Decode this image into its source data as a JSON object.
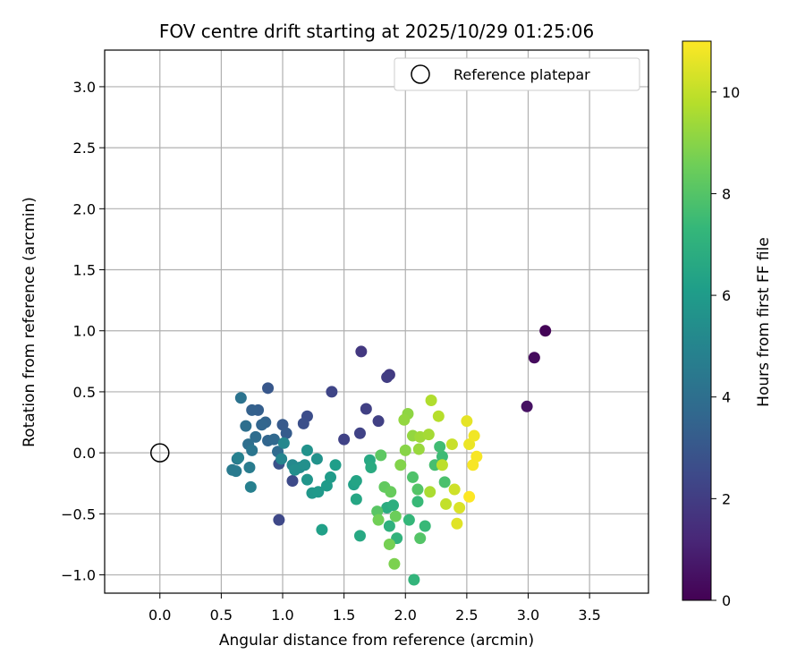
{
  "chart_data": {
    "type": "scatter",
    "title": "FOV centre drift starting at 2025/10/29 01:25:06",
    "xlabel": "Angular distance from reference (arcmin)",
    "ylabel": "Rotation from reference (arcmin)",
    "xlim": [
      -0.45,
      3.98
    ],
    "ylim": [
      -1.15,
      3.3
    ],
    "xticks": [
      0.0,
      0.5,
      1.0,
      1.5,
      2.0,
      2.5,
      3.0,
      3.5
    ],
    "xtick_labels": [
      "0.0",
      "0.5",
      "1.0",
      "1.5",
      "2.0",
      "2.5",
      "3.0",
      "3.5"
    ],
    "yticks": [
      -1.0,
      -0.5,
      0.0,
      0.5,
      1.0,
      1.5,
      2.0,
      2.5,
      3.0
    ],
    "ytick_labels": [
      "−1.0",
      "−0.5",
      "0.0",
      "0.5",
      "1.0",
      "1.5",
      "2.0",
      "2.5",
      "3.0"
    ],
    "grid": true,
    "legend": {
      "position": "top-right",
      "entries": [
        "Reference platepar"
      ]
    },
    "reference_point": {
      "x": 0.0,
      "y": 0.0,
      "label": "Reference platepar"
    },
    "colorbar": {
      "label": "Hours from first FF file",
      "range": [
        0,
        11
      ],
      "ticks": [
        0,
        2,
        4,
        6,
        8,
        10
      ],
      "tick_labels": [
        "0",
        "2",
        "4",
        "6",
        "8",
        "10"
      ],
      "colormap": [
        "#440154",
        "#482878",
        "#3e4989",
        "#31688e",
        "#26828e",
        "#1f9e89",
        "#35b779",
        "#6ece58",
        "#b5de2b",
        "#fde725"
      ]
    },
    "points": [
      {
        "x": 3.14,
        "y": 1.0,
        "t": 0.1
      },
      {
        "x": 3.05,
        "y": 0.78,
        "t": 0.3
      },
      {
        "x": 2.99,
        "y": 0.38,
        "t": 0.5
      },
      {
        "x": 1.64,
        "y": 0.83,
        "t": 1.8
      },
      {
        "x": 1.87,
        "y": 0.64,
        "t": 1.9
      },
      {
        "x": 1.85,
        "y": 0.62,
        "t": 2.0
      },
      {
        "x": 1.68,
        "y": 0.36,
        "t": 2.1
      },
      {
        "x": 1.78,
        "y": 0.26,
        "t": 2.1
      },
      {
        "x": 1.63,
        "y": 0.16,
        "t": 2.2
      },
      {
        "x": 1.5,
        "y": 0.11,
        "t": 2.2
      },
      {
        "x": 1.4,
        "y": 0.5,
        "t": 2.3
      },
      {
        "x": 0.97,
        "y": -0.55,
        "t": 2.4
      },
      {
        "x": 1.08,
        "y": -0.23,
        "t": 2.5
      },
      {
        "x": 1.2,
        "y": 0.3,
        "t": 2.6
      },
      {
        "x": 1.17,
        "y": 0.24,
        "t": 2.7
      },
      {
        "x": 0.97,
        "y": -0.09,
        "t": 2.8
      },
      {
        "x": 0.88,
        "y": 0.53,
        "t": 3.0
      },
      {
        "x": 1.0,
        "y": 0.23,
        "t": 3.1
      },
      {
        "x": 1.03,
        "y": 0.16,
        "t": 3.2
      },
      {
        "x": 0.8,
        "y": 0.35,
        "t": 3.3
      },
      {
        "x": 0.75,
        "y": 0.35,
        "t": 3.4
      },
      {
        "x": 0.86,
        "y": 0.25,
        "t": 3.5
      },
      {
        "x": 0.83,
        "y": 0.23,
        "t": 3.6
      },
      {
        "x": 0.88,
        "y": 0.1,
        "t": 3.6
      },
      {
        "x": 0.93,
        "y": 0.11,
        "t": 3.7
      },
      {
        "x": 0.96,
        "y": 0.01,
        "t": 3.8
      },
      {
        "x": 0.78,
        "y": 0.13,
        "t": 3.9
      },
      {
        "x": 0.72,
        "y": 0.07,
        "t": 4.0
      },
      {
        "x": 0.7,
        "y": 0.22,
        "t": 4.0
      },
      {
        "x": 0.66,
        "y": 0.45,
        "t": 4.2
      },
      {
        "x": 0.75,
        "y": 0.02,
        "t": 4.3
      },
      {
        "x": 0.63,
        "y": -0.05,
        "t": 4.4
      },
      {
        "x": 0.59,
        "y": -0.14,
        "t": 4.5
      },
      {
        "x": 0.62,
        "y": -0.15,
        "t": 4.5
      },
      {
        "x": 0.73,
        "y": -0.12,
        "t": 4.6
      },
      {
        "x": 0.74,
        "y": -0.28,
        "t": 4.8
      },
      {
        "x": 0.64,
        "y": -0.04,
        "t": 4.8
      },
      {
        "x": 0.99,
        "y": -0.05,
        "t": 5.0
      },
      {
        "x": 1.01,
        "y": 0.08,
        "t": 5.1
      },
      {
        "x": 1.08,
        "y": -0.1,
        "t": 5.2
      },
      {
        "x": 1.14,
        "y": -0.12,
        "t": 5.3
      },
      {
        "x": 1.1,
        "y": -0.14,
        "t": 5.4
      },
      {
        "x": 1.18,
        "y": -0.1,
        "t": 5.5
      },
      {
        "x": 1.2,
        "y": 0.02,
        "t": 5.6
      },
      {
        "x": 1.28,
        "y": -0.05,
        "t": 5.6
      },
      {
        "x": 1.2,
        "y": -0.22,
        "t": 5.7
      },
      {
        "x": 1.24,
        "y": -0.33,
        "t": 5.8
      },
      {
        "x": 1.29,
        "y": -0.32,
        "t": 5.9
      },
      {
        "x": 1.36,
        "y": -0.27,
        "t": 6.0
      },
      {
        "x": 1.39,
        "y": -0.2,
        "t": 6.0
      },
      {
        "x": 1.43,
        "y": -0.1,
        "t": 6.1
      },
      {
        "x": 1.32,
        "y": -0.63,
        "t": 6.2
      },
      {
        "x": 1.58,
        "y": -0.26,
        "t": 6.3
      },
      {
        "x": 1.6,
        "y": -0.23,
        "t": 6.4
      },
      {
        "x": 1.6,
        "y": -0.38,
        "t": 6.5
      },
      {
        "x": 1.63,
        "y": -0.68,
        "t": 6.6
      },
      {
        "x": 1.71,
        "y": -0.06,
        "t": 6.6
      },
      {
        "x": 1.72,
        "y": -0.12,
        "t": 6.7
      },
      {
        "x": 1.85,
        "y": -0.45,
        "t": 6.8
      },
      {
        "x": 1.9,
        "y": -0.43,
        "t": 6.9
      },
      {
        "x": 1.87,
        "y": -0.6,
        "t": 7.0
      },
      {
        "x": 1.93,
        "y": -0.7,
        "t": 7.1
      },
      {
        "x": 2.07,
        "y": -1.04,
        "t": 7.2
      },
      {
        "x": 2.03,
        "y": -0.55,
        "t": 7.3
      },
      {
        "x": 2.1,
        "y": -0.4,
        "t": 7.4
      },
      {
        "x": 2.16,
        "y": -0.6,
        "t": 7.4
      },
      {
        "x": 2.3,
        "y": -0.03,
        "t": 7.5
      },
      {
        "x": 2.28,
        "y": 0.05,
        "t": 7.6
      },
      {
        "x": 2.24,
        "y": -0.1,
        "t": 7.7
      },
      {
        "x": 2.32,
        "y": -0.24,
        "t": 7.8
      },
      {
        "x": 2.06,
        "y": -0.2,
        "t": 7.9
      },
      {
        "x": 2.1,
        "y": -0.3,
        "t": 8.0
      },
      {
        "x": 2.12,
        "y": -0.7,
        "t": 8.0
      },
      {
        "x": 1.77,
        "y": -0.48,
        "t": 8.1
      },
      {
        "x": 1.8,
        "y": -0.02,
        "t": 8.2
      },
      {
        "x": 1.83,
        "y": -0.28,
        "t": 8.3
      },
      {
        "x": 1.88,
        "y": -0.32,
        "t": 8.4
      },
      {
        "x": 1.92,
        "y": -0.52,
        "t": 8.5
      },
      {
        "x": 1.78,
        "y": -0.55,
        "t": 8.6
      },
      {
        "x": 1.87,
        "y": -0.75,
        "t": 8.7
      },
      {
        "x": 1.91,
        "y": -0.91,
        "t": 8.8
      },
      {
        "x": 1.96,
        "y": -0.1,
        "t": 8.9
      },
      {
        "x": 2.0,
        "y": 0.02,
        "t": 9.0
      },
      {
        "x": 2.02,
        "y": 0.32,
        "t": 9.1
      },
      {
        "x": 1.99,
        "y": 0.27,
        "t": 9.2
      },
      {
        "x": 2.06,
        "y": 0.14,
        "t": 9.2
      },
      {
        "x": 2.11,
        "y": 0.03,
        "t": 9.3
      },
      {
        "x": 2.12,
        "y": 0.13,
        "t": 9.4
      },
      {
        "x": 2.19,
        "y": 0.15,
        "t": 9.5
      },
      {
        "x": 2.2,
        "y": -0.32,
        "t": 9.6
      },
      {
        "x": 2.21,
        "y": 0.43,
        "t": 9.7
      },
      {
        "x": 2.27,
        "y": 0.3,
        "t": 9.8
      },
      {
        "x": 2.3,
        "y": -0.1,
        "t": 9.9
      },
      {
        "x": 2.33,
        "y": -0.42,
        "t": 10.0
      },
      {
        "x": 2.38,
        "y": 0.07,
        "t": 10.1
      },
      {
        "x": 2.4,
        "y": -0.3,
        "t": 10.2
      },
      {
        "x": 2.44,
        "y": -0.45,
        "t": 10.4
      },
      {
        "x": 2.42,
        "y": -0.58,
        "t": 10.5
      },
      {
        "x": 2.5,
        "y": 0.26,
        "t": 10.6
      },
      {
        "x": 2.52,
        "y": 0.07,
        "t": 10.7
      },
      {
        "x": 2.56,
        "y": 0.14,
        "t": 10.8
      },
      {
        "x": 2.58,
        "y": -0.03,
        "t": 10.9
      },
      {
        "x": 2.55,
        "y": -0.1,
        "t": 10.9
      },
      {
        "x": 2.52,
        "y": -0.36,
        "t": 11.0
      }
    ]
  }
}
